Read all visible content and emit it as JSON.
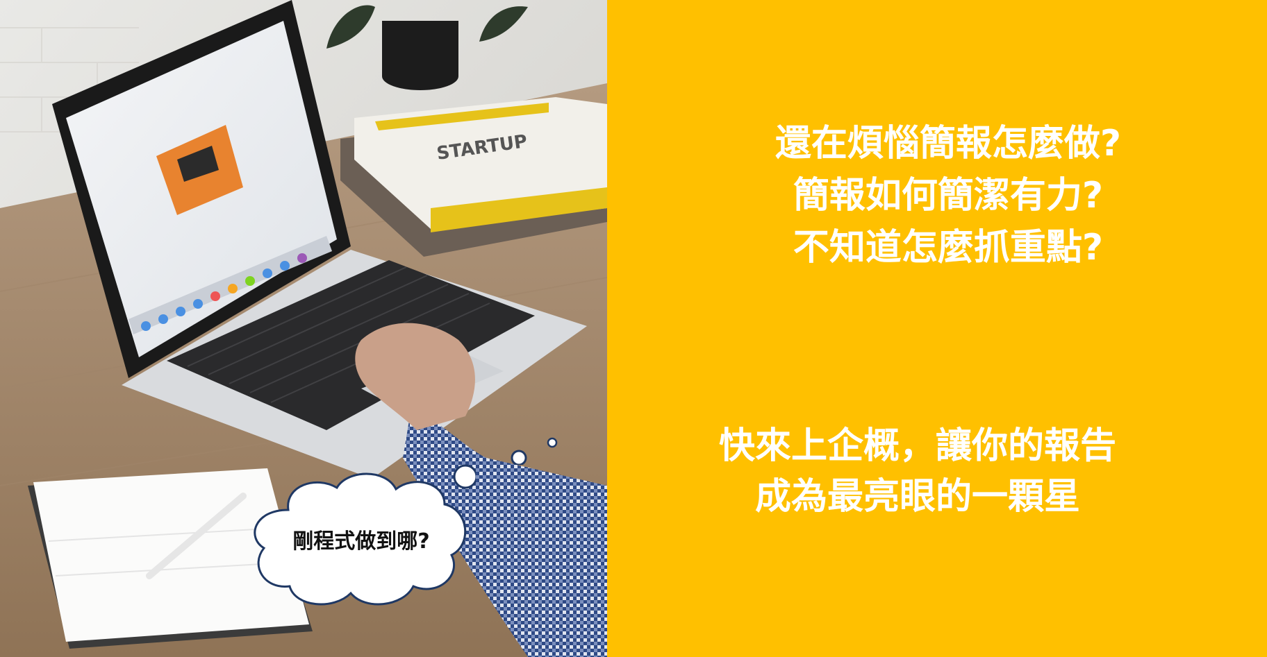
{
  "questions": {
    "line1": "還在煩惱簡報怎麼做?",
    "line2": "簡報如何簡潔有力?",
    "line3": "不知道怎麼抓重點?"
  },
  "call_to_action": {
    "line1": "快來上企概，讓你的報告",
    "line2": "成為最亮眼的一顆星"
  },
  "thought_bubble": {
    "text": "剛程式做到哪?"
  },
  "photo": {
    "book_title": "STARTUP"
  },
  "colors": {
    "panel": "#FFC000",
    "panel_text": "#FFFFFF",
    "bubble_outline": "#1F3864"
  }
}
